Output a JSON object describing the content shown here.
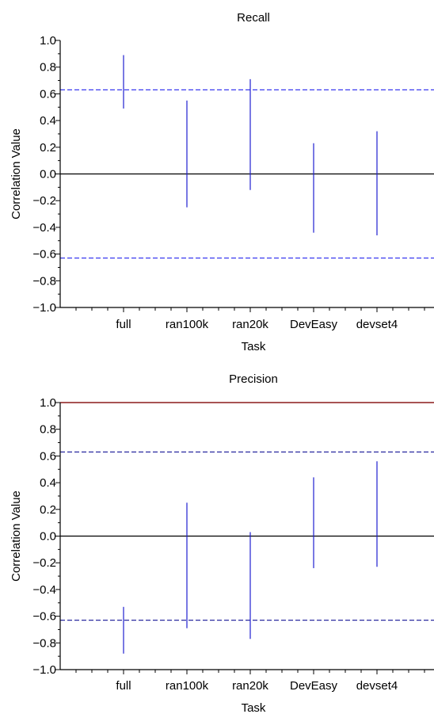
{
  "chart_data": [
    {
      "type": "errorbar",
      "title": "Recall",
      "xlabel": "Task",
      "ylabel": "Correlation Value",
      "ylim": [
        -1.0,
        1.0
      ],
      "yticks": [
        "1.0",
        "0.8",
        "0.6",
        "0.4",
        "0.2",
        "0.0",
        "−0.2",
        "−0.4",
        "−0.6",
        "−0.8",
        "−1.0"
      ],
      "categories": [
        "full",
        "ran100k",
        "ran20k",
        "DevEasy",
        "devset4"
      ],
      "intervals": [
        {
          "low": 0.49,
          "high": 0.89
        },
        {
          "low": -0.25,
          "high": 0.55
        },
        {
          "low": -0.12,
          "high": 0.71
        },
        {
          "low": -0.44,
          "high": 0.23
        },
        {
          "low": -0.46,
          "high": 0.32
        }
      ],
      "reference_lines": [
        {
          "y": 0.63,
          "style": "dashed",
          "color": "#3a3af0"
        },
        {
          "y": -0.63,
          "style": "dashed",
          "color": "#3a3af0"
        },
        {
          "y": 0.0,
          "style": "solid",
          "color": "#000000"
        }
      ],
      "interval_color": "#2020d0"
    },
    {
      "type": "errorbar",
      "title": "Precision",
      "xlabel": "Task",
      "ylabel": "Correlation Value",
      "ylim": [
        -1.0,
        1.0
      ],
      "yticks": [
        "1.0",
        "0.8",
        "0.6",
        "0.4",
        "0.2",
        "0.0",
        "−0.2",
        "−0.4",
        "−0.6",
        "−0.8",
        "−1.0"
      ],
      "categories": [
        "full",
        "ran100k",
        "ran20k",
        "DevEasy",
        "devset4"
      ],
      "intervals": [
        {
          "low": -0.88,
          "high": -0.53
        },
        {
          "low": -0.69,
          "high": 0.25
        },
        {
          "low": -0.77,
          "high": 0.03
        },
        {
          "low": -0.24,
          "high": 0.44
        },
        {
          "low": -0.23,
          "high": 0.56
        }
      ],
      "reference_lines": [
        {
          "y": 1.0,
          "style": "solid",
          "color": "#8b1a1a"
        },
        {
          "y": 0.63,
          "style": "dashed",
          "color": "#2a2aa0"
        },
        {
          "y": -0.63,
          "style": "dashed",
          "color": "#2a2aa0"
        },
        {
          "y": 0.0,
          "style": "solid",
          "color": "#000000"
        }
      ],
      "interval_color": "#2020d0"
    }
  ]
}
